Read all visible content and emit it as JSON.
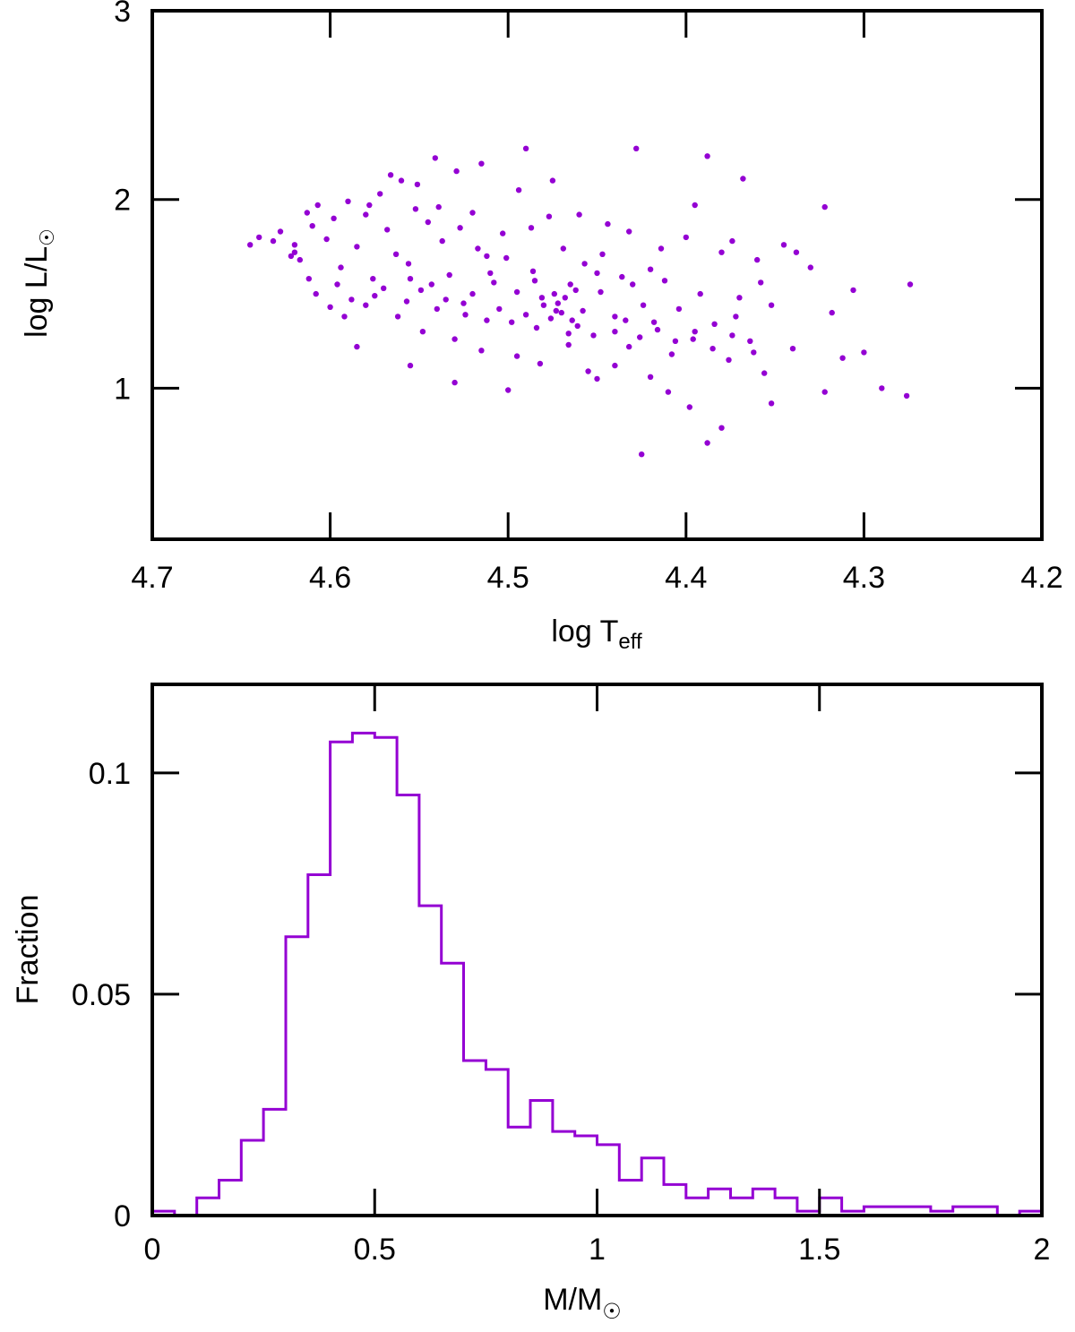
{
  "accent_color": "#9400D3",
  "chart_data": [
    {
      "type": "scatter",
      "title": "",
      "xlabel": {
        "base": "log T",
        "sub": "eff"
      },
      "ylabel": {
        "base": "log L/L",
        "sub": "☉"
      },
      "xlim": [
        4.7,
        4.2
      ],
      "ylim": [
        0.2,
        3.0
      ],
      "x_reversed": true,
      "xticks": [
        4.7,
        4.6,
        4.5,
        4.4,
        4.3,
        4.2
      ],
      "xtick_labels": [
        "4.7",
        "4.6",
        "4.5",
        "4.4",
        "4.3",
        "4.2"
      ],
      "yticks": [
        1,
        2,
        3
      ],
      "ytick_labels": [
        "1",
        "2",
        "3"
      ],
      "marker_color": "#9400D3",
      "grid": false,
      "legend": "none",
      "series": [
        {
          "points": [
            [
              4.645,
              1.76
            ],
            [
              4.64,
              1.8
            ],
            [
              4.632,
              1.78
            ],
            [
              4.628,
              1.83
            ],
            [
              4.62,
              1.72
            ],
            [
              4.617,
              1.68
            ],
            [
              4.613,
              1.93
            ],
            [
              4.61,
              1.86
            ],
            [
              4.607,
              1.97
            ],
            [
              4.602,
              1.79
            ],
            [
              4.598,
              1.9
            ],
            [
              4.594,
              1.64
            ],
            [
              4.59,
              1.99
            ],
            [
              4.585,
              1.75
            ],
            [
              4.58,
              1.92
            ],
            [
              4.576,
              1.58
            ],
            [
              4.572,
              2.03
            ],
            [
              4.568,
              1.84
            ],
            [
              4.563,
              1.71
            ],
            [
              4.56,
              2.1
            ],
            [
              4.556,
              1.66
            ],
            [
              4.552,
              1.95
            ],
            [
              4.549,
              1.52
            ],
            [
              4.545,
              1.88
            ],
            [
              4.541,
              2.22
            ],
            [
              4.537,
              1.78
            ],
            [
              4.533,
              1.6
            ],
            [
              4.529,
              2.15
            ],
            [
              4.525,
              1.45
            ],
            [
              4.52,
              1.93
            ],
            [
              4.515,
              2.19
            ],
            [
              4.512,
              1.7
            ],
            [
              4.508,
              1.56
            ],
            [
              4.503,
              1.82
            ],
            [
              4.498,
              1.35
            ],
            [
              4.494,
              2.05
            ],
            [
              4.49,
              2.27
            ],
            [
              4.486,
              1.62
            ],
            [
              4.481,
              1.48
            ],
            [
              4.477,
              1.91
            ],
            [
              4.473,
              1.41
            ],
            [
              4.469,
              1.74
            ],
            [
              4.465,
              1.55
            ],
            [
              4.461,
              1.33
            ],
            [
              4.457,
              1.66
            ],
            [
              4.452,
              1.28
            ],
            [
              4.448,
              1.51
            ],
            [
              4.444,
              1.87
            ],
            [
              4.44,
              1.38
            ],
            [
              4.436,
              1.59
            ],
            [
              4.432,
              1.22
            ],
            [
              4.428,
              2.27
            ],
            [
              4.424,
              1.44
            ],
            [
              4.42,
              1.63
            ],
            [
              4.416,
              1.31
            ],
            [
              4.412,
              1.57
            ],
            [
              4.408,
              1.18
            ],
            [
              4.404,
              1.42
            ],
            [
              4.4,
              1.8
            ],
            [
              4.396,
              1.26
            ],
            [
              4.392,
              1.5
            ],
            [
              4.388,
              2.23
            ],
            [
              4.384,
              1.34
            ],
            [
              4.38,
              1.72
            ],
            [
              4.376,
              1.15
            ],
            [
              4.372,
              1.38
            ],
            [
              4.368,
              2.11
            ],
            [
              4.364,
              1.25
            ],
            [
              4.36,
              1.68
            ],
            [
              4.356,
              1.08
            ],
            [
              4.352,
              1.44
            ],
            [
              4.345,
              1.76
            ],
            [
              4.34,
              1.21
            ],
            [
              4.33,
              1.64
            ],
            [
              4.322,
              1.96
            ],
            [
              4.318,
              1.4
            ],
            [
              4.312,
              1.16
            ],
            [
              4.306,
              1.52
            ],
            [
              4.3,
              1.19
            ],
            [
              4.29,
              1.0
            ],
            [
              4.274,
              1.55
            ],
            [
              4.276,
              0.96
            ],
            [
              4.322,
              0.98
            ],
            [
              4.352,
              0.92
            ],
            [
              4.38,
              0.79
            ],
            [
              4.388,
              0.71
            ],
            [
              4.425,
              0.65
            ],
            [
              4.398,
              0.9
            ],
            [
              4.45,
              1.05
            ],
            [
              4.5,
              0.99
            ],
            [
              4.53,
              1.03
            ],
            [
              4.555,
              1.12
            ],
            [
              4.585,
              1.22
            ],
            [
              4.612,
              1.58
            ],
            [
              4.6,
              1.43
            ],
            [
              4.575,
              1.49
            ],
            [
              4.562,
              1.38
            ],
            [
              4.548,
              1.3
            ],
            [
              4.53,
              1.26
            ],
            [
              4.515,
              1.2
            ],
            [
              4.495,
              1.17
            ],
            [
              4.482,
              1.13
            ],
            [
              4.466,
              1.23
            ],
            [
              4.455,
              1.09
            ],
            [
              4.44,
              1.12
            ],
            [
              4.42,
              1.06
            ],
            [
              4.41,
              0.98
            ],
            [
              4.47,
              1.4
            ],
            [
              4.472,
              1.45
            ],
            [
              4.468,
              1.48
            ],
            [
              4.462,
              1.52
            ],
            [
              4.476,
              1.37
            ],
            [
              4.48,
              1.44
            ],
            [
              4.458,
              1.41
            ],
            [
              4.464,
              1.36
            ],
            [
              4.474,
              1.5
            ],
            [
              4.466,
              1.29
            ],
            [
              4.484,
              1.32
            ],
            [
              4.49,
              1.39
            ],
            [
              4.505,
              1.42
            ],
            [
              4.512,
              1.36
            ],
            [
              4.52,
              1.5
            ],
            [
              4.535,
              1.47
            ],
            [
              4.543,
              1.55
            ],
            [
              4.557,
              1.46
            ],
            [
              4.57,
              1.53
            ],
            [
              4.588,
              1.47
            ],
            [
              4.596,
              1.55
            ],
            [
              4.608,
              1.5
            ],
            [
              4.44,
              1.3
            ],
            [
              4.434,
              1.36
            ],
            [
              4.426,
              1.27
            ],
            [
              4.418,
              1.35
            ],
            [
              4.406,
              1.25
            ],
            [
              4.395,
              1.3
            ],
            [
              4.385,
              1.21
            ],
            [
              4.374,
              1.28
            ],
            [
              4.362,
              1.19
            ],
            [
              4.527,
              1.85
            ],
            [
              4.539,
              1.96
            ],
            [
              4.551,
              2.08
            ],
            [
              4.566,
              2.13
            ],
            [
              4.578,
              1.97
            ],
            [
              4.517,
              1.74
            ],
            [
              4.501,
              1.69
            ],
            [
              4.487,
              1.85
            ],
            [
              4.475,
              2.1
            ],
            [
              4.46,
              1.92
            ],
            [
              4.447,
              1.71
            ],
            [
              4.432,
              1.83
            ],
            [
              4.414,
              1.74
            ],
            [
              4.395,
              1.97
            ],
            [
              4.374,
              1.78
            ],
            [
              4.338,
              1.72
            ],
            [
              4.358,
              1.56
            ],
            [
              4.37,
              1.48
            ],
            [
              4.43,
              1.55
            ],
            [
              4.45,
              1.61
            ],
            [
              4.485,
              1.57
            ],
            [
              4.495,
              1.51
            ],
            [
              4.51,
              1.61
            ],
            [
              4.524,
              1.39
            ],
            [
              4.54,
              1.42
            ],
            [
              4.555,
              1.58
            ],
            [
              4.58,
              1.44
            ],
            [
              4.592,
              1.38
            ],
            [
              4.62,
              1.76
            ],
            [
              4.622,
              1.7
            ]
          ]
        }
      ]
    },
    {
      "type": "bar",
      "subtype": "step-histogram",
      "title": "",
      "xlabel": {
        "base": "M/M",
        "sub": "☉"
      },
      "ylabel": "Fraction",
      "xlim": [
        0,
        2
      ],
      "ylim": [
        0,
        0.12
      ],
      "xticks": [
        0,
        0.5,
        1,
        1.5,
        2
      ],
      "xtick_labels": [
        "0",
        "0.5",
        "1",
        "1.5",
        "2"
      ],
      "yticks": [
        0,
        0.05,
        0.1
      ],
      "ytick_labels": [
        "0",
        "0.05",
        "0.1"
      ],
      "line_color": "#9400D3",
      "grid": false,
      "legend": "none",
      "bin_width": 0.05,
      "bin_start": 0.0,
      "values": [
        0.001,
        0.0,
        0.004,
        0.008,
        0.017,
        0.024,
        0.063,
        0.077,
        0.107,
        0.109,
        0.108,
        0.095,
        0.07,
        0.057,
        0.035,
        0.033,
        0.02,
        0.026,
        0.019,
        0.018,
        0.016,
        0.008,
        0.013,
        0.007,
        0.004,
        0.006,
        0.004,
        0.006,
        0.004,
        0.001,
        0.004,
        0.001,
        0.002,
        0.002,
        0.002,
        0.001,
        0.002,
        0.002,
        0.0,
        0.001
      ]
    }
  ]
}
